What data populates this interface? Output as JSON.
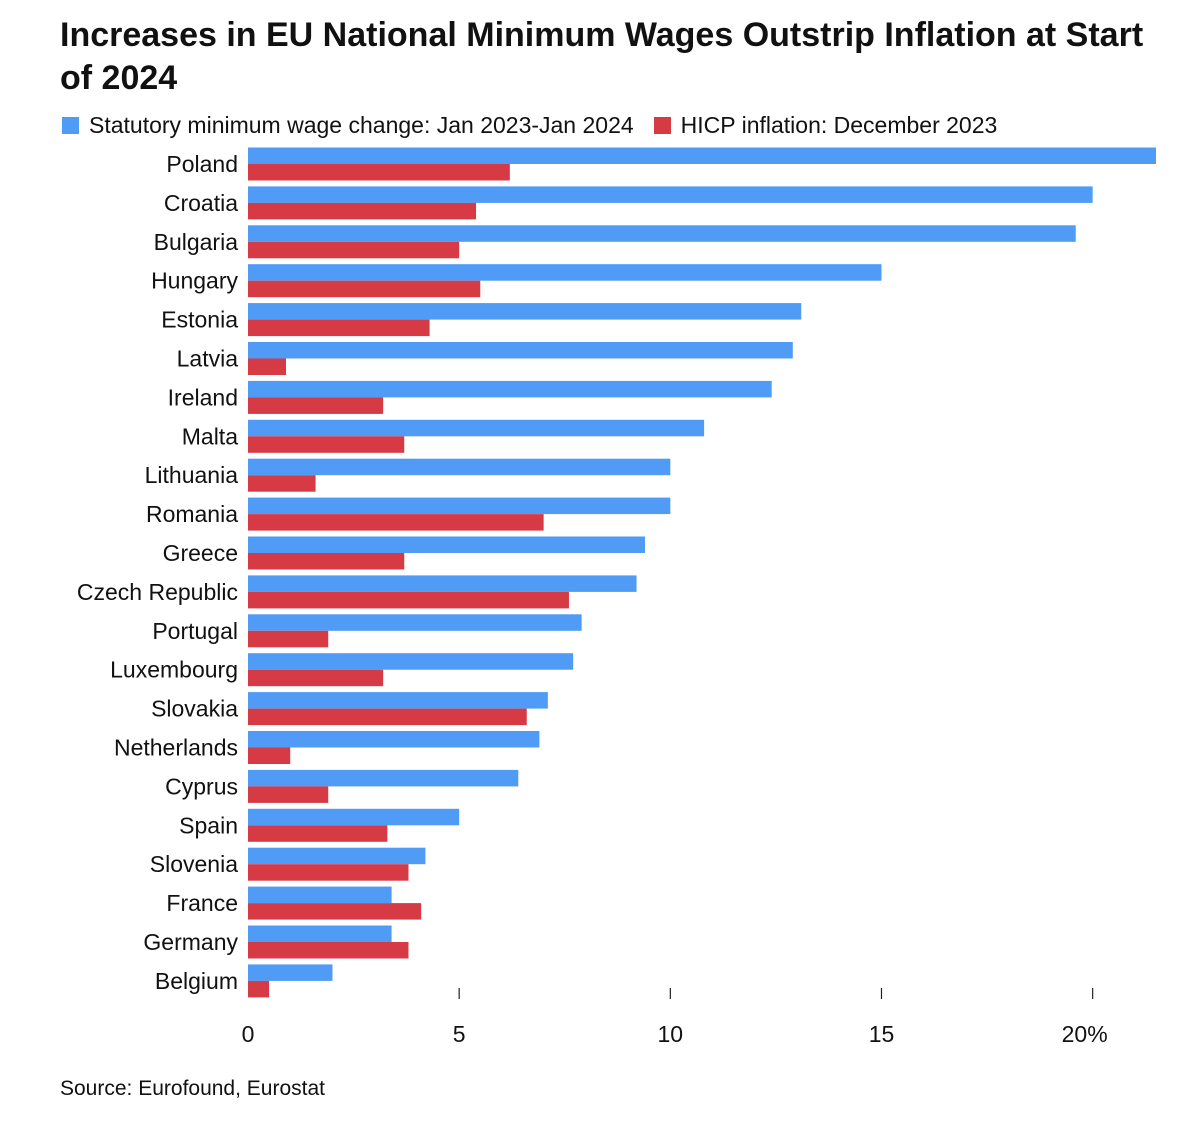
{
  "chart_data": {
    "type": "bar",
    "orientation": "horizontal",
    "title": "Increases in EU National Minimum Wages Outstrip Inflation at Start of 2024",
    "xlabel": "",
    "ylabel": "",
    "xlim": [
      0,
      21.5
    ],
    "ticks": [
      0,
      5,
      10,
      15,
      20
    ],
    "tick_labels": [
      "0",
      "5",
      "10",
      "15",
      "20%"
    ],
    "grid": false,
    "legend_position": "top-left",
    "categories": [
      "Poland",
      "Croatia",
      "Bulgaria",
      "Hungary",
      "Estonia",
      "Latvia",
      "Ireland",
      "Malta",
      "Lithuania",
      "Romania",
      "Greece",
      "Czech Republic",
      "Portugal",
      "Luxembourg",
      "Slovakia",
      "Netherlands",
      "Cyprus",
      "Spain",
      "Slovenia",
      "France",
      "Germany",
      "Belgium"
    ],
    "series": [
      {
        "name": "Statutory minimum wage change: Jan 2023-Jan 2024",
        "color": "#4f9bf5",
        "values": [
          21.5,
          20.0,
          19.6,
          15.0,
          13.1,
          12.9,
          12.4,
          10.8,
          10.0,
          10.0,
          9.4,
          9.2,
          7.9,
          7.7,
          7.1,
          6.9,
          6.4,
          5.0,
          4.2,
          3.4,
          3.4,
          2.0
        ]
      },
      {
        "name": "HICP inflation: December 2023",
        "color": "#d63b45",
        "values": [
          6.2,
          5.4,
          5.0,
          5.5,
          4.3,
          0.9,
          3.2,
          3.7,
          1.6,
          7.0,
          3.7,
          7.6,
          1.9,
          3.2,
          6.6,
          1.0,
          1.9,
          3.3,
          3.8,
          4.1,
          3.8,
          0.5
        ]
      }
    ]
  },
  "source": "Source: Eurofound, Eurostat"
}
